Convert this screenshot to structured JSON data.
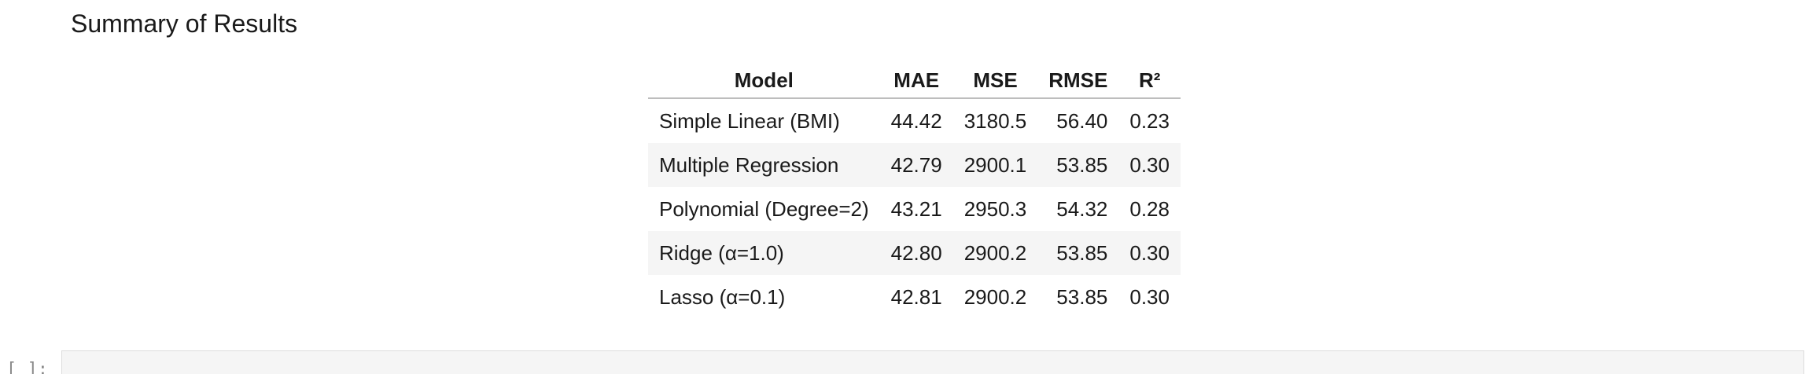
{
  "markdown": {
    "heading": "Summary of Results"
  },
  "table": {
    "headers": [
      "Model",
      "MAE",
      "MSE",
      "RMSE",
      "R²"
    ],
    "rows": [
      [
        "Simple Linear (BMI)",
        "44.42",
        "3180.5",
        "56.40",
        "0.23"
      ],
      [
        "Multiple Regression",
        "42.79",
        "2900.1",
        "53.85",
        "0.30"
      ],
      [
        "Polynomial (Degree=2)",
        "43.21",
        "2950.3",
        "54.32",
        "0.28"
      ],
      [
        "Ridge (α=1.0)",
        "42.80",
        "2900.2",
        "53.85",
        "0.30"
      ],
      [
        "Lasso (α=0.1)",
        "42.81",
        "2900.2",
        "53.85",
        "0.30"
      ]
    ]
  },
  "code_cell": {
    "prompt": "[ ]:"
  },
  "colors": {
    "stripe": "#f5f5f5",
    "header_rule": "#bdbdbd",
    "editor_bg": "#f5f5f5",
    "editor_border": "#dcdcdc"
  }
}
